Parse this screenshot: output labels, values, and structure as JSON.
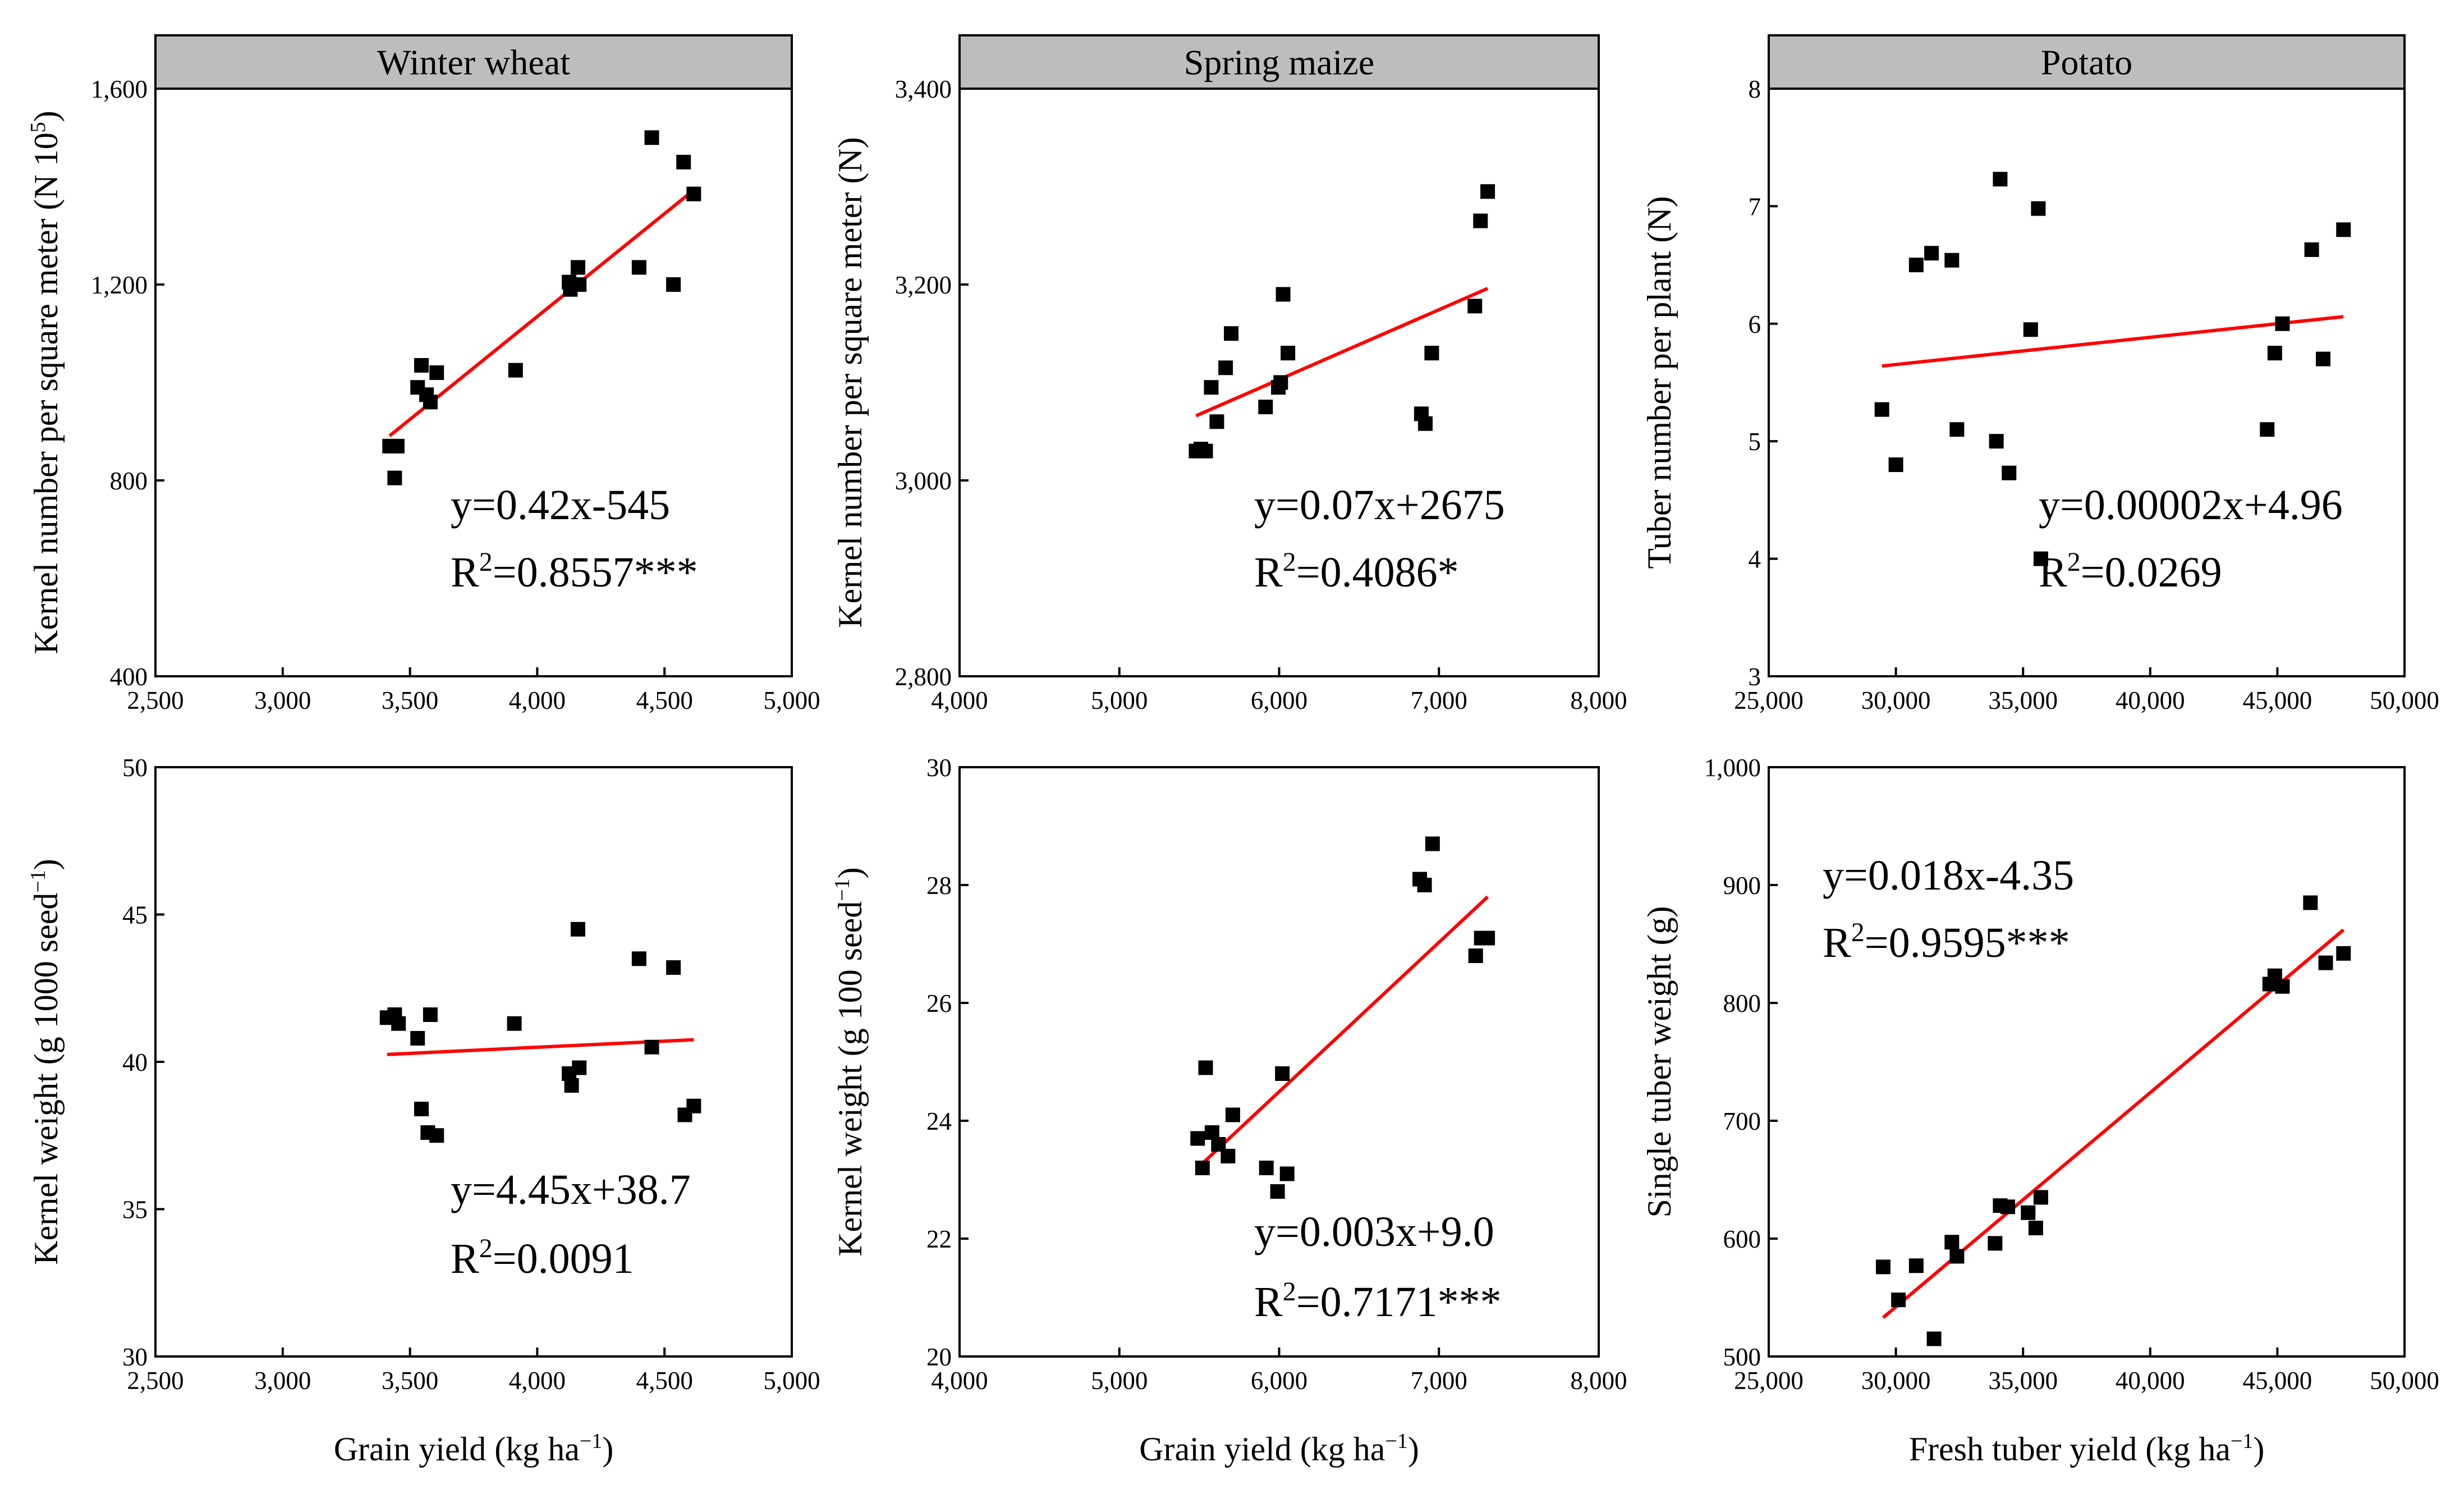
{
  "colors": {
    "points": "#000000",
    "fit_line": "#ff0000",
    "strip_fill": "#bdbdbd",
    "axes": "#000000"
  },
  "chart_data": [
    {
      "type": "scatter",
      "strip_title": "Winter wheat",
      "ylabel": "Kernel number per square meter  (N 10",
      "ylabel_sup": "5",
      "ylabel_end": ")",
      "xlabel": "",
      "xlim": [
        2500,
        5000
      ],
      "ylim": [
        400,
        1600
      ],
      "xticks": [
        2500,
        3000,
        3500,
        4000,
        4500,
        5000
      ],
      "xtick_labels": [
        "2,500",
        "3,000",
        "3,500",
        "4,000",
        "4,500",
        "5,000"
      ],
      "yticks": [
        400,
        800,
        1200,
        1600
      ],
      "ytick_labels": [
        "400",
        "800",
        "1,200",
        "1,600"
      ],
      "points": [
        [
          3420,
          870
        ],
        [
          3450,
          870
        ],
        [
          3440,
          805
        ],
        [
          3530,
          990
        ],
        [
          3545,
          1035
        ],
        [
          3565,
          975
        ],
        [
          3580,
          960
        ],
        [
          3605,
          1020
        ],
        [
          3915,
          1025
        ],
        [
          4125,
          1205
        ],
        [
          4130,
          1190
        ],
        [
          4165,
          1200
        ],
        [
          4160,
          1235
        ],
        [
          4400,
          1235
        ],
        [
          4450,
          1500
        ],
        [
          4535,
          1200
        ],
        [
          4575,
          1450
        ],
        [
          4615,
          1385
        ]
      ],
      "fit": {
        "x": [
          3420,
          4615
        ],
        "y": [
          891,
          1393
        ]
      },
      "equation": "y=0.42x-545",
      "r2_prefix": "R",
      "r2_sup": "2",
      "r2_value": "=0.8557***"
    },
    {
      "type": "scatter",
      "strip_title": "Spring maize",
      "ylabel": "Kernel number per square meter (N)",
      "xlabel": "",
      "xlim": [
        4000,
        8000
      ],
      "ylim": [
        2800,
        3400
      ],
      "xticks": [
        4000,
        5000,
        6000,
        7000,
        8000
      ],
      "xtick_labels": [
        "4,000",
        "5,000",
        "6,000",
        "7,000",
        "8,000"
      ],
      "yticks": [
        2800,
        3000,
        3200,
        3400
      ],
      "ytick_labels": [
        "2,800",
        "3,000",
        "3,200",
        "3,400"
      ],
      "points": [
        [
          5480,
          3030
        ],
        [
          5510,
          3032
        ],
        [
          5540,
          3030
        ],
        [
          5575,
          3095
        ],
        [
          5610,
          3060
        ],
        [
          5665,
          3115
        ],
        [
          5700,
          3150
        ],
        [
          5915,
          3075
        ],
        [
          5995,
          3095
        ],
        [
          6010,
          3100
        ],
        [
          6025,
          3190
        ],
        [
          6055,
          3130
        ],
        [
          6890,
          3068
        ],
        [
          6915,
          3058
        ],
        [
          6955,
          3130
        ],
        [
          7225,
          3178
        ],
        [
          7260,
          3265
        ],
        [
          7305,
          3295
        ]
      ],
      "fit": {
        "x": [
          5480,
          7305
        ],
        "y": [
          3066,
          3196
        ]
      },
      "equation": "y=0.07x+2675",
      "r2_prefix": "R",
      "r2_sup": "2",
      "r2_value": "=0.4086*"
    },
    {
      "type": "scatter",
      "strip_title": "Potato",
      "ylabel": "Tuber number per plant (N)",
      "xlabel": "",
      "xlim": [
        25000,
        50000
      ],
      "ylim": [
        3,
        8
      ],
      "xticks": [
        25000,
        30000,
        35000,
        40000,
        45000,
        50000
      ],
      "xtick_labels": [
        "25,000",
        "30,000",
        "35,000",
        "40,000",
        "45,000",
        "50,000"
      ],
      "yticks": [
        3,
        4,
        5,
        6,
        7,
        8
      ],
      "ytick_labels": [
        "3",
        "4",
        "5",
        "6",
        "7",
        "8"
      ],
      "points": [
        [
          29450,
          5.27
        ],
        [
          30000,
          4.8
        ],
        [
          30800,
          6.5
        ],
        [
          31400,
          6.6
        ],
        [
          32200,
          6.54
        ],
        [
          32400,
          5.1
        ],
        [
          33950,
          5.0
        ],
        [
          34100,
          7.23
        ],
        [
          34450,
          4.73
        ],
        [
          35300,
          5.95
        ],
        [
          35600,
          6.98
        ],
        [
          35700,
          4.0
        ],
        [
          44600,
          5.1
        ],
        [
          44900,
          5.75
        ],
        [
          45200,
          6.0
        ],
        [
          46350,
          6.63
        ],
        [
          46800,
          5.7
        ],
        [
          47600,
          6.8
        ]
      ],
      "fit": {
        "x": [
          29450,
          47600
        ],
        "y": [
          5.64,
          6.06
        ]
      },
      "equation": "y=0.00002x+4.96",
      "r2_prefix": "R",
      "r2_sup": "2",
      "r2_value": "=0.0269"
    },
    {
      "type": "scatter",
      "strip_title": "",
      "ylabel": "Kernel weight (g 1000 seed",
      "ylabel_sup": "−1",
      "ylabel_end": ")",
      "xlabel": "Grain yield (kg ha",
      "xlabel_sup": "−1",
      "xlabel_end": ")",
      "xlim": [
        2500,
        5000
      ],
      "ylim": [
        30,
        50
      ],
      "xticks": [
        2500,
        3000,
        3500,
        4000,
        4500,
        5000
      ],
      "xtick_labels": [
        "2,500",
        "3,000",
        "3,500",
        "4,000",
        "4,500",
        "5,000"
      ],
      "yticks": [
        30,
        35,
        40,
        45,
        50
      ],
      "ytick_labels": [
        "30",
        "35",
        "40",
        "45",
        "50"
      ],
      "points": [
        [
          3410,
          41.5
        ],
        [
          3440,
          41.6
        ],
        [
          3455,
          41.3
        ],
        [
          3530,
          40.8
        ],
        [
          3545,
          38.4
        ],
        [
          3570,
          37.6
        ],
        [
          3580,
          41.6
        ],
        [
          3605,
          37.5
        ],
        [
          3910,
          41.3
        ],
        [
          4125,
          39.6
        ],
        [
          4135,
          39.2
        ],
        [
          4160,
          44.5
        ],
        [
          4165,
          39.8
        ],
        [
          4400,
          43.5
        ],
        [
          4450,
          40.5
        ],
        [
          4535,
          43.2
        ],
        [
          4580,
          38.2
        ],
        [
          4615,
          38.5
        ]
      ],
      "fit": {
        "x": [
          3410,
          4615
        ],
        "y": [
          40.25,
          40.75
        ]
      },
      "equation": "y=4.45x+38.7",
      "r2_prefix": "R",
      "r2_sup": "2",
      "r2_value": "=0.0091"
    },
    {
      "type": "scatter",
      "strip_title": "",
      "ylabel": "Kernel weight (g 100 seed",
      "ylabel_sup": "−1",
      "ylabel_end": ")",
      "xlabel": "Grain yield (kg ha",
      "xlabel_sup": "−1",
      "xlabel_end": ")",
      "xlim": [
        4000,
        8000
      ],
      "ylim": [
        20,
        30
      ],
      "xticks": [
        4000,
        5000,
        6000,
        7000,
        8000
      ],
      "xtick_labels": [
        "4,000",
        "5,000",
        "6,000",
        "7,000",
        "8,000"
      ],
      "yticks": [
        20,
        22,
        24,
        26,
        28,
        30
      ],
      "ytick_labels": [
        "20",
        "22",
        "24",
        "26",
        "28",
        "30"
      ],
      "points": [
        [
          5490,
          23.7
        ],
        [
          5520,
          23.2
        ],
        [
          5540,
          24.9
        ],
        [
          5580,
          23.8
        ],
        [
          5620,
          23.6
        ],
        [
          5680,
          23.4
        ],
        [
          5710,
          24.1
        ],
        [
          5920,
          23.2
        ],
        [
          5990,
          22.8
        ],
        [
          6020,
          24.8
        ],
        [
          6050,
          23.1
        ],
        [
          6880,
          28.1
        ],
        [
          6910,
          28.0
        ],
        [
          6960,
          28.7
        ],
        [
          7230,
          26.8
        ],
        [
          7265,
          27.1
        ],
        [
          7305,
          27.1
        ]
      ],
      "fit": {
        "x": [
          5490,
          7305
        ],
        "y": [
          23.2,
          27.8
        ]
      },
      "equation": "y=0.003x+9.0",
      "r2_prefix": "R",
      "r2_sup": "2",
      "r2_value": "=0.7171***"
    },
    {
      "type": "scatter",
      "strip_title": "",
      "ylabel": "Single tuber weight (g)",
      "xlabel": "Fresh tuber yield (kg ha",
      "xlabel_sup": "−1",
      "xlabel_end": ")",
      "xlim": [
        25000,
        50000
      ],
      "ylim": [
        500,
        1000
      ],
      "xticks": [
        25000,
        30000,
        35000,
        40000,
        45000,
        50000
      ],
      "xtick_labels": [
        "25,000",
        "30,000",
        "35,000",
        "40,000",
        "45,000",
        "50,000"
      ],
      "yticks": [
        500,
        600,
        700,
        800,
        900,
        1000
      ],
      "ytick_labels": [
        "500",
        "600",
        "700",
        "800",
        "900",
        "1,000"
      ],
      "points": [
        [
          29500,
          576
        ],
        [
          30100,
          548
        ],
        [
          30800,
          577
        ],
        [
          31500,
          515
        ],
        [
          32200,
          597
        ],
        [
          32400,
          585
        ],
        [
          33900,
          596
        ],
        [
          34100,
          628
        ],
        [
          34400,
          627
        ],
        [
          35200,
          622
        ],
        [
          35500,
          609
        ],
        [
          35700,
          635
        ],
        [
          44700,
          816
        ],
        [
          44900,
          823
        ],
        [
          45200,
          814
        ],
        [
          46300,
          885
        ],
        [
          46900,
          834
        ],
        [
          47600,
          842
        ]
      ],
      "fit": {
        "x": [
          29500,
          47600
        ],
        "y": [
          533,
          862
        ]
      },
      "equation": "y=0.018x-4.35",
      "r2_prefix": "R",
      "r2_sup": "2",
      "r2_value": "=0.9595***"
    }
  ]
}
